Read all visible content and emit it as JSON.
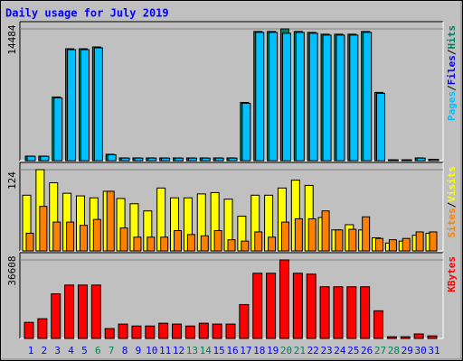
{
  "chart_data": [
    {
      "type": "bar",
      "title": "Daily usage for July 2019",
      "ylim": [
        0,
        14484
      ],
      "yticks": [
        14484
      ],
      "legend_separator": "/",
      "series": [
        {
          "name": "Hits",
          "color": "#00805c",
          "values": [
            500,
            500,
            7000,
            12300,
            12300,
            12500,
            700,
            300,
            300,
            300,
            300,
            300,
            300,
            300,
            300,
            300,
            6400,
            14200,
            14200,
            14484,
            14200,
            14100,
            13900,
            13900,
            13900,
            14200,
            7500,
            100,
            100,
            300,
            150
          ]
        },
        {
          "name": "Files",
          "color": "#0000ff",
          "values": [
            350,
            350,
            4600,
            8500,
            8500,
            8600,
            450,
            200,
            200,
            200,
            200,
            200,
            200,
            200,
            200,
            200,
            4200,
            9700,
            9700,
            9800,
            9700,
            9600,
            9500,
            9500,
            9500,
            9700,
            5000,
            60,
            60,
            200,
            100
          ]
        },
        {
          "name": "Pages",
          "color": "#00c0ff",
          "values": [
            480,
            480,
            6900,
            12200,
            12200,
            12400,
            650,
            280,
            280,
            280,
            280,
            280,
            280,
            280,
            280,
            280,
            6300,
            14100,
            14100,
            14000,
            14100,
            14000,
            13800,
            13800,
            13800,
            14100,
            7400,
            90,
            90,
            280,
            140
          ]
        }
      ]
    },
    {
      "type": "bar",
      "ylim": [
        0,
        124
      ],
      "yticks": [
        124
      ],
      "legend_separator": "/",
      "series": [
        {
          "name": "Visits",
          "color": "#ffff00",
          "values": [
            85,
            124,
            104,
            88,
            84,
            81,
            91,
            80,
            72,
            61,
            96,
            81,
            81,
            87,
            89,
            79,
            53,
            85,
            85,
            96,
            108,
            100,
            51,
            32,
            40,
            32,
            20,
            12,
            15,
            24,
            27
          ]
        },
        {
          "name": "Sites",
          "color": "#ff8000",
          "values": [
            27,
            68,
            44,
            44,
            39,
            48,
            91,
            35,
            21,
            21,
            21,
            31,
            25,
            23,
            31,
            17,
            15,
            29,
            21,
            44,
            49,
            49,
            61,
            32,
            33,
            52,
            19,
            17,
            19,
            29,
            29
          ]
        }
      ]
    },
    {
      "type": "bar",
      "ylim": [
        0,
        36608
      ],
      "yticks": [
        36608
      ],
      "series": [
        {
          "name": "KBytes",
          "color": "#ff0000",
          "values": [
            7500,
            9200,
            20800,
            24900,
            24900,
            24900,
            4600,
            6700,
            5800,
            5800,
            7100,
            6700,
            5800,
            7100,
            6700,
            6700,
            15800,
            30400,
            30400,
            36608,
            30400,
            30000,
            24100,
            24100,
            24100,
            24100,
            12900,
            800,
            800,
            2100,
            1200
          ]
        }
      ],
      "categories": [
        "1",
        "2",
        "3",
        "4",
        "5",
        "6",
        "7",
        "8",
        "9",
        "10",
        "11",
        "12",
        "13",
        "14",
        "15",
        "16",
        "17",
        "18",
        "19",
        "20",
        "21",
        "22",
        "23",
        "24",
        "25",
        "26",
        "27",
        "28",
        "29",
        "30",
        "31"
      ],
      "category_colors": [
        "#0000ff",
        "#0000ff",
        "#0000ff",
        "#0000ff",
        "#0000ff",
        "#00805c",
        "#00805c",
        "#0000ff",
        "#0000ff",
        "#0000ff",
        "#0000ff",
        "#0000ff",
        "#00805c",
        "#00805c",
        "#0000ff",
        "#0000ff",
        "#0000ff",
        "#0000ff",
        "#0000ff",
        "#00805c",
        "#00805c",
        "#0000ff",
        "#0000ff",
        "#0000ff",
        "#0000ff",
        "#0000ff",
        "#00805c",
        "#00805c",
        "#0000ff",
        "#0000ff",
        "#0000ff"
      ]
    }
  ]
}
